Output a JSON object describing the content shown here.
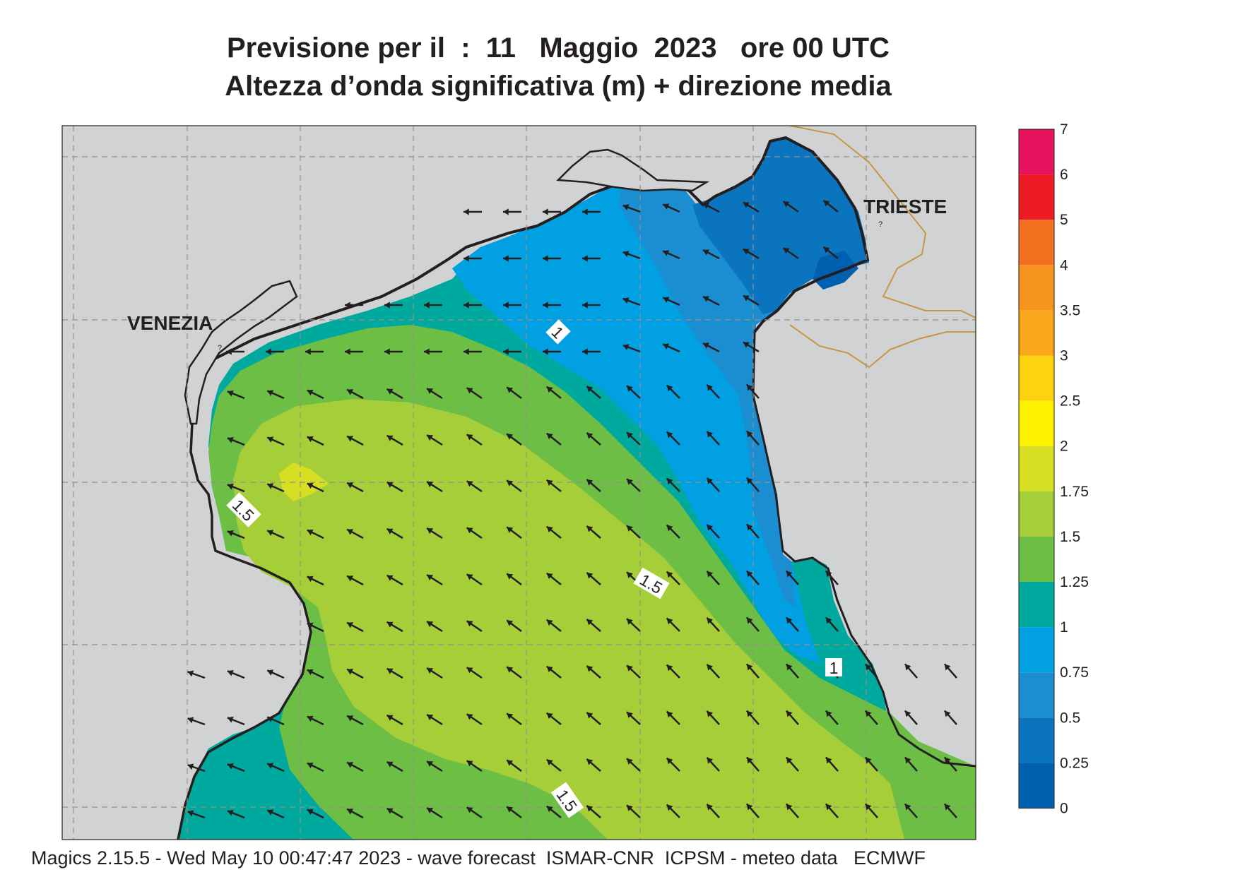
{
  "title": {
    "line1": "Previsione per il  :  11   Maggio  2023   ore 00 UTC",
    "line2": "Altezza d’onda significativa (m) + direzione media"
  },
  "places": {
    "venezia": "VENEZIA",
    "trieste": "TRIESTE"
  },
  "contour_labels": [
    "1",
    "1.5",
    "1.5",
    "1",
    "1.5"
  ],
  "legend": {
    "levels": [
      "7",
      "6",
      "5",
      "4",
      "3.5",
      "3",
      "2.5",
      "2",
      "1.75",
      "1.5",
      "1.25",
      "1",
      "0.75",
      "0.5",
      "0.25",
      "0"
    ],
    "colors": [
      "#e8135e",
      "#ed1c24",
      "#f37021",
      "#f7941d",
      "#faa61a",
      "#fdd20e",
      "#fff200",
      "#d7df23",
      "#a6ce39",
      "#6cbe45",
      "#00a99d",
      "#00a0e3",
      "#1b8ed1",
      "#0a74bf",
      "#0060b0"
    ]
  },
  "colors": {
    "land": "#d1d2d4",
    "coast": "#231f20",
    "border": "#c8963e",
    "arrow": "#231f20"
  },
  "footer": "Magics 2.15.5 - Wed May 10 00:47:47 2023 - wave forecast  ISMAR-CNR  ICPSM - meteo data   ECMWF"
}
